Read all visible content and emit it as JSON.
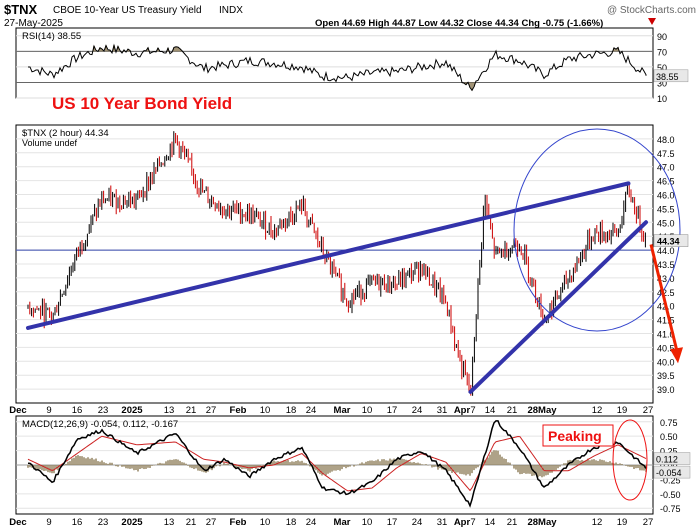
{
  "header": {
    "symbol": "$TNX",
    "name": "CBOE 10-Year US Treasury Yield",
    "exchange": "INDX",
    "date": "27-May-2025",
    "quote": "Open 44.69  High 44.87  Low 44.32  Close 44.34  Chg -0.75 (-1.66%)",
    "down_icon": "triangle-down-icon",
    "watermark": "@ StockCharts.com"
  },
  "annotations": {
    "title": "US 10 Year Bond  Yield",
    "peaking": "Peaking"
  },
  "colors": {
    "price_up": "#000000",
    "price_down": "#cc0000",
    "trendline": "#3333aa",
    "circle": "#3344cc",
    "arrow": "#ee2200",
    "annotation_red": "#ee1111",
    "macd_line": "#000000",
    "signal_line": "#cc2222",
    "histogram": "#8b7a55",
    "rsi_fill": "#8b7a55",
    "last_price_bg": "#e8e8e8"
  },
  "chart_data": [
    {
      "type": "line",
      "panel": "rsi",
      "title": "RSI(14) 38.55",
      "ylim": [
        10,
        100
      ],
      "yticks": [
        "90",
        "70",
        "50",
        "30",
        "10"
      ],
      "reference_levels": [
        70,
        30
      ],
      "last_label": "38.55",
      "x": [
        "Dec 2",
        "Dec 9",
        "Dec 16",
        "Dec 23",
        "Jan 2",
        "Jan 13",
        "Jan 21",
        "Jan 27",
        "Feb 3",
        "Feb 10",
        "Feb 18",
        "Feb 24",
        "Mar 3",
        "Mar 10",
        "Mar 17",
        "Mar 24",
        "Mar 31",
        "Apr 7",
        "Apr 14",
        "Apr 21",
        "Apr 28",
        "May 5",
        "May 12",
        "May 19",
        "May 27"
      ],
      "values": [
        50,
        40,
        62,
        75,
        68,
        72,
        48,
        52,
        58,
        55,
        50,
        38,
        36,
        42,
        44,
        50,
        56,
        22,
        66,
        58,
        40,
        60,
        66,
        70,
        38.55
      ]
    },
    {
      "type": "line",
      "panel": "price",
      "title": "$TNX (2 hour) 44.34",
      "subtitle": "Volume undef",
      "ylim": [
        38.5,
        48.5
      ],
      "yticks": [
        "48.0",
        "47.5",
        "47.0",
        "46.5",
        "46.0",
        "45.5",
        "45.0",
        "44.5",
        "44.0",
        "43.5",
        "43.0",
        "42.5",
        "42.0",
        "41.5",
        "41.0",
        "40.5",
        "40.0",
        "39.5",
        "39.0"
      ],
      "last_label": "44.34",
      "xticks": [
        "Dec",
        "9",
        "16",
        "23",
        "2025",
        "13",
        "21",
        "27",
        "Feb",
        "10",
        "18",
        "24",
        "Mar",
        "10",
        "17",
        "24",
        "31",
        "Apr",
        "7",
        "14",
        "21",
        "28May",
        "12",
        "19",
        "27"
      ],
      "x": [
        "Dec 2",
        "Dec 9",
        "Dec 16",
        "Dec 23",
        "Jan 2",
        "Jan 13",
        "Jan 21",
        "Jan 27",
        "Feb 3",
        "Feb 10",
        "Feb 18",
        "Feb 24",
        "Mar 3",
        "Mar 10",
        "Mar 17",
        "Mar 24",
        "Mar 31",
        "Apr 4",
        "Apr 7",
        "Apr 11",
        "Apr 14",
        "Apr 21",
        "Apr 28",
        "May 5",
        "May 12",
        "May 19",
        "May 22",
        "May 27"
      ],
      "values": [
        42.0,
        41.6,
        43.9,
        45.8,
        45.8,
        48.0,
        46.0,
        45.5,
        45.3,
        44.7,
        45.6,
        43.9,
        42.2,
        42.8,
        42.8,
        43.4,
        42.1,
        40.0,
        38.8,
        45.9,
        43.8,
        44.3,
        41.5,
        43.0,
        44.6,
        44.6,
        46.2,
        44.34
      ],
      "hline": 44.0,
      "trendlines": [
        {
          "from": [
            "Dec 2",
            41.2
          ],
          "to": [
            "May 22",
            46.4
          ]
        },
        {
          "from": [
            "Apr 7",
            38.9
          ],
          "to": [
            "May 27",
            45.0
          ]
        }
      ],
      "projection": {
        "from": [
          "May 27",
          44.2
        ],
        "to": [
          "May 29",
          40.0
        ]
      }
    },
    {
      "type": "line",
      "panel": "macd",
      "title": "MACD(12,26,9) -0.054, 0.112, -0.167",
      "ylim": [
        -0.85,
        0.85
      ],
      "yticks": [
        "0.75",
        "0.50",
        "0.25",
        "0.00",
        "-0.25",
        "-0.50",
        "-0.75"
      ],
      "last_labels": [
        "0.112",
        "-0.054"
      ],
      "x": [
        "Dec 2",
        "Dec 9",
        "Dec 16",
        "Dec 23",
        "Jan 2",
        "Jan 13",
        "Jan 21",
        "Jan 27",
        "Feb 3",
        "Feb 10",
        "Feb 18",
        "Feb 24",
        "Mar 3",
        "Mar 10",
        "Mar 17",
        "Mar 24",
        "Mar 31",
        "Apr 7",
        "Apr 14",
        "Apr 21",
        "Apr 28",
        "May 5",
        "May 12",
        "May 19",
        "May 27"
      ],
      "series": [
        {
          "name": "MACD",
          "values": [
            0.05,
            -0.3,
            0.45,
            0.6,
            0.2,
            0.55,
            -0.1,
            0.1,
            -0.2,
            0.1,
            0.3,
            -0.4,
            -0.5,
            -0.3,
            0.1,
            0.25,
            -0.1,
            -0.7,
            0.8,
            0.3,
            -0.4,
            0.0,
            0.3,
            0.4,
            -0.054
          ]
        },
        {
          "name": "Signal",
          "values": [
            0.1,
            -0.1,
            0.2,
            0.5,
            0.35,
            0.4,
            0.1,
            0.05,
            -0.05,
            0.0,
            0.2,
            -0.15,
            -0.45,
            -0.4,
            -0.05,
            0.2,
            0.05,
            -0.45,
            0.4,
            0.5,
            -0.1,
            -0.1,
            0.15,
            0.35,
            0.112
          ]
        }
      ]
    }
  ]
}
